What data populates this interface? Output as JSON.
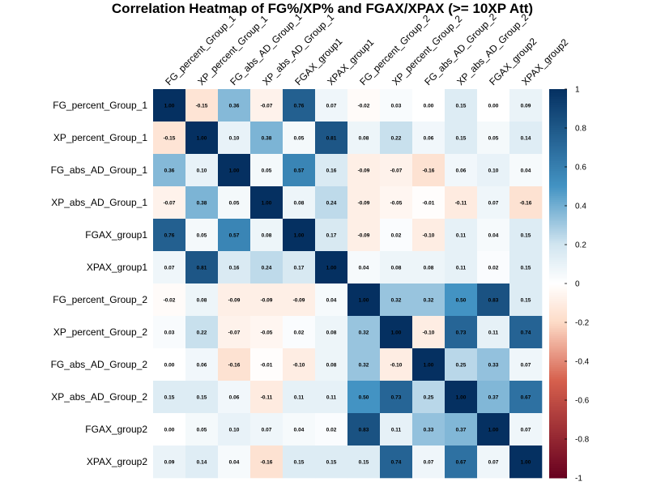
{
  "chart_data": {
    "type": "heatmap",
    "title": "Correlation Heatmap of FG%/XP% and FGAX/XPAX (>= 10XP Att)",
    "variables": [
      "FG_percent_Group_1",
      "XP_percent_Group_1",
      "FG_abs_AD_Group_1",
      "XP_abs_AD_Group_1",
      "FGAX_group1",
      "XPAX_group1",
      "FG_percent_Group_2",
      "XP_percent_Group_2",
      "FG_abs_AD_Group_2",
      "XP_abs_AD_Group_2",
      "FGAX_group2",
      "XPAX_group2"
    ],
    "matrix": [
      [
        1.0,
        -0.15,
        0.36,
        -0.07,
        0.76,
        0.07,
        -0.02,
        0.03,
        0.0,
        0.15,
        0.0,
        0.09
      ],
      [
        -0.15,
        1.0,
        0.1,
        0.38,
        0.05,
        0.81,
        0.08,
        0.22,
        0.06,
        0.15,
        0.05,
        0.14
      ],
      [
        0.36,
        0.1,
        1.0,
        0.05,
        0.57,
        0.16,
        -0.09,
        -0.07,
        -0.16,
        0.06,
        0.1,
        0.04
      ],
      [
        -0.07,
        0.38,
        0.05,
        1.0,
        0.08,
        0.24,
        -0.09,
        -0.05,
        -0.01,
        -0.11,
        0.07,
        -0.16
      ],
      [
        0.76,
        0.05,
        0.57,
        0.08,
        1.0,
        0.17,
        -0.09,
        0.02,
        -0.1,
        0.11,
        0.04,
        0.15
      ],
      [
        0.07,
        0.81,
        0.16,
        0.24,
        0.17,
        1.0,
        0.04,
        0.08,
        0.08,
        0.11,
        0.02,
        0.15
      ],
      [
        -0.02,
        0.08,
        -0.09,
        -0.09,
        -0.09,
        0.04,
        1.0,
        0.32,
        0.32,
        0.5,
        0.83,
        0.15
      ],
      [
        0.03,
        0.22,
        -0.07,
        -0.05,
        0.02,
        0.08,
        0.32,
        1.0,
        -0.1,
        0.73,
        0.11,
        0.74
      ],
      [
        0.0,
        0.06,
        -0.16,
        -0.01,
        -0.1,
        0.08,
        0.32,
        -0.1,
        1.0,
        0.25,
        0.33,
        0.07
      ],
      [
        0.15,
        0.15,
        0.06,
        -0.11,
        0.11,
        0.11,
        0.5,
        0.73,
        0.25,
        1.0,
        0.37,
        0.67
      ],
      [
        0.0,
        0.05,
        0.1,
        0.07,
        0.04,
        0.02,
        0.83,
        0.11,
        0.33,
        0.37,
        1.0,
        0.07
      ],
      [
        0.09,
        0.14,
        0.04,
        -0.16,
        0.15,
        0.15,
        0.15,
        0.74,
        0.07,
        0.67,
        0.07,
        1.0
      ]
    ],
    "value_range": [
      -1,
      1
    ],
    "colorbar_ticks": [
      "1",
      "0.8",
      "0.6",
      "0.4",
      "0.2",
      "0",
      "-0.2",
      "-0.4",
      "-0.6",
      "-0.8",
      "-1"
    ],
    "colorbar_tick_values": [
      1,
      0.8,
      0.6,
      0.4,
      0.2,
      0,
      -0.2,
      -0.4,
      -0.6,
      -0.8,
      -1
    ],
    "color_scale": {
      "negative_end": "#67001f",
      "mid_negative": "#d6604d",
      "light_negative": "#fddbc7",
      "center": "#ffffff",
      "light_positive": "#d1e5f0",
      "mid_positive": "#4393c3",
      "positive_end": "#053061"
    },
    "legend_placement": "right"
  }
}
